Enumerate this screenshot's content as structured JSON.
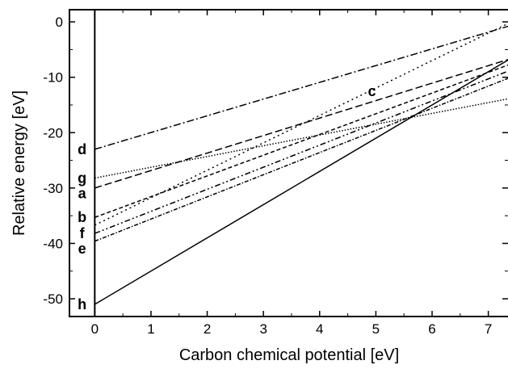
{
  "chart_data": {
    "type": "line",
    "title": "",
    "xlabel": "Carbon chemical potential [eV]",
    "ylabel": "Relative energy [eV]",
    "xlim": [
      -0.45,
      7.35
    ],
    "ylim": [
      -53.2,
      2.2
    ],
    "x_ticks": [
      0,
      1,
      2,
      3,
      4,
      5,
      6,
      7
    ],
    "y_ticks": [
      0,
      -10,
      -20,
      -30,
      -40,
      -50
    ],
    "grid": false,
    "legend": "none",
    "series": [
      {
        "name": "d",
        "style": "dashdot",
        "x": [
          0,
          7.35
        ],
        "y": [
          -23.0,
          -0.8
        ]
      },
      {
        "name": "g",
        "style": "dotted",
        "x": [
          0,
          7.35
        ],
        "y": [
          -28.2,
          -13.9
        ]
      },
      {
        "name": "a",
        "style": "dashed",
        "x": [
          0,
          7.35
        ],
        "y": [
          -30.0,
          -6.8
        ]
      },
      {
        "name": "b",
        "style": "dashed-short",
        "x": [
          0,
          7.35
        ],
        "y": [
          -35.3,
          -7.8
        ]
      },
      {
        "name": "c",
        "style": "dotted-sparse",
        "x": [
          0,
          7.35
        ],
        "y": [
          -36.7,
          -0.3
        ]
      },
      {
        "name": "f",
        "style": "dashdotdot",
        "x": [
          0,
          7.35
        ],
        "y": [
          -38.2,
          -8.9
        ]
      },
      {
        "name": "e",
        "style": "dashdot-dense",
        "x": [
          0,
          7.35
        ],
        "y": [
          -39.6,
          -10.2
        ]
      },
      {
        "name": "h",
        "style": "solid",
        "x": [
          0,
          7.35
        ],
        "y": [
          -51.0,
          -6.9
        ]
      }
    ],
    "annotations": [
      {
        "text": "c",
        "x": 4.93,
        "y": -12.5
      }
    ]
  }
}
